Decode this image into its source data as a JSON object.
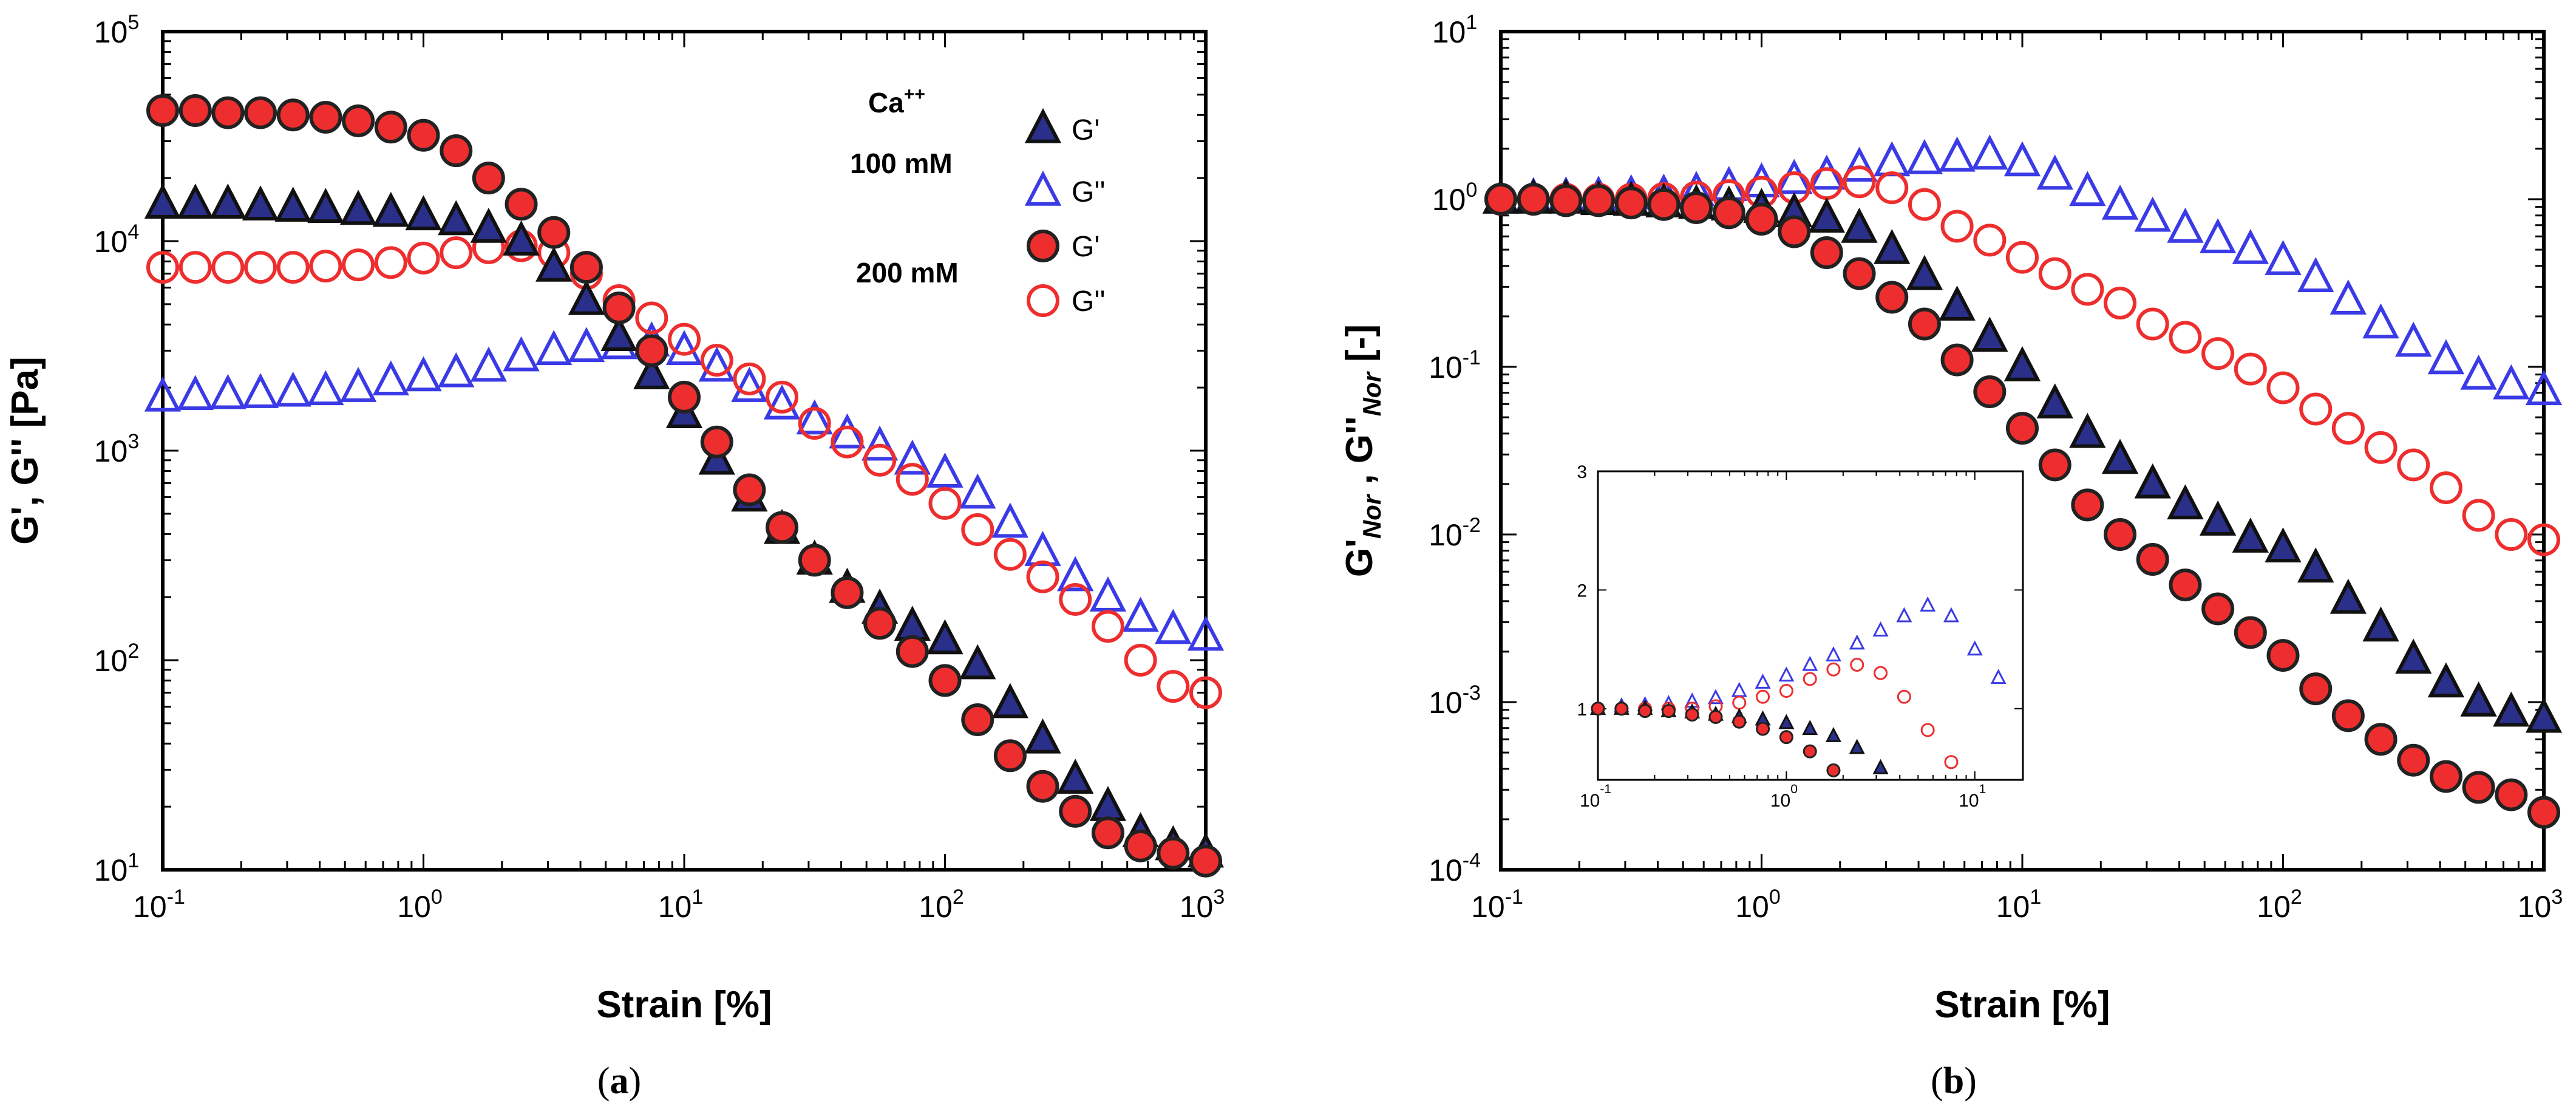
{
  "figure": {
    "captions": [
      "(a)",
      "(b)"
    ],
    "caption_letters": [
      "a",
      "b"
    ]
  },
  "chart_data": [
    {
      "id": "a",
      "type": "scatter",
      "xscale": "log",
      "yscale": "log",
      "xlim": [
        0.1,
        1000
      ],
      "ylim": [
        10,
        100000
      ],
      "xlabel": "Strain [%]",
      "ylabel": "G', G'' [Pa]",
      "xticks": [
        {
          "base": "10",
          "exp": "-1"
        },
        {
          "base": "10",
          "exp": "0"
        },
        {
          "base": "10",
          "exp": "1"
        },
        {
          "base": "10",
          "exp": "2"
        },
        {
          "base": "10",
          "exp": "3"
        }
      ],
      "yticks": [
        {
          "base": "10",
          "exp": "1"
        },
        {
          "base": "10",
          "exp": "2"
        },
        {
          "base": "10",
          "exp": "3"
        },
        {
          "base": "10",
          "exp": "4"
        },
        {
          "base": "10",
          "exp": "5"
        }
      ],
      "legend": {
        "position": "top-right",
        "ion_label": "Ca",
        "ion_charge": "++",
        "groups": [
          "100 mM",
          "200 mM"
        ],
        "entries": [
          {
            "series": "Gp_100",
            "label": "G'"
          },
          {
            "series": "Gpp_100",
            "label": "G''"
          },
          {
            "series": "Gp_200",
            "label": "G'"
          },
          {
            "series": "Gpp_200",
            "label": "G''"
          }
        ]
      },
      "x": [
        0.1,
        0.1334,
        0.1778,
        0.2371,
        0.3162,
        0.4217,
        0.5623,
        0.7499,
        1.0,
        1.334,
        1.778,
        2.371,
        3.162,
        4.217,
        5.623,
        7.499,
        10.0,
        13.34,
        17.78,
        23.71,
        31.62,
        42.17,
        56.23,
        74.99,
        100.0,
        133.4,
        177.8,
        237.1,
        316.2,
        421.7,
        562.3,
        749.9,
        1000.0
      ],
      "series": [
        {
          "key": "Gp_100",
          "name": "G' 100 mM",
          "marker": "triangle",
          "fill": "#2a2f8a",
          "stroke": "#111111",
          "values": [
            15000,
            15000,
            15000,
            14700,
            14500,
            14300,
            14000,
            13700,
            13200,
            12500,
            11500,
            10000,
            7500,
            5200,
            3500,
            2300,
            1500,
            900,
            600,
            420,
            300,
            220,
            175,
            145,
            125,
            95,
            62,
            42,
            27,
            20,
            15,
            13,
            12
          ]
        },
        {
          "key": "Gpp_100",
          "name": "G'' 100 mM",
          "marker": "triangle-open",
          "fill": "none",
          "stroke": "#3a3ae6",
          "values": [
            1800,
            1830,
            1850,
            1870,
            1900,
            1930,
            2000,
            2150,
            2250,
            2350,
            2500,
            2800,
            3000,
            3100,
            3200,
            3300,
            3000,
            2500,
            2000,
            1650,
            1400,
            1200,
            1050,
            900,
            780,
            620,
            450,
            330,
            250,
            200,
            160,
            140,
            130
          ]
        },
        {
          "key": "Gp_200",
          "name": "G' 200 mM",
          "marker": "circle",
          "fill": "#ee2e2e",
          "stroke": "#222222",
          "values": [
            42000,
            42000,
            41000,
            41000,
            40000,
            39000,
            37500,
            35000,
            32000,
            27000,
            20000,
            15000,
            11000,
            7500,
            4800,
            3000,
            1800,
            1100,
            650,
            430,
            300,
            210,
            150,
            110,
            80,
            52,
            35,
            25,
            19,
            15,
            13,
            12,
            11
          ]
        },
        {
          "key": "Gpp_200",
          "name": "G'' 200 mM",
          "marker": "circle-open",
          "fill": "none",
          "stroke": "#ee2e2e",
          "values": [
            7500,
            7500,
            7500,
            7500,
            7500,
            7600,
            7700,
            7900,
            8300,
            8800,
            9300,
            9500,
            8800,
            7000,
            5200,
            4300,
            3400,
            2700,
            2200,
            1800,
            1350,
            1100,
            900,
            730,
            560,
            420,
            320,
            250,
            195,
            145,
            100,
            75,
            70
          ]
        }
      ]
    },
    {
      "id": "b",
      "type": "scatter",
      "xscale": "log",
      "yscale": "log",
      "xlim": [
        0.1,
        1000
      ],
      "ylim": [
        0.0001,
        10
      ],
      "xlabel": "Strain [%]",
      "ylabel_parts": [
        "G'",
        "Nor",
        " , G''",
        "Nor",
        " [-]"
      ],
      "xticks": [
        {
          "base": "10",
          "exp": "-1"
        },
        {
          "base": "10",
          "exp": "0"
        },
        {
          "base": "10",
          "exp": "1"
        },
        {
          "base": "10",
          "exp": "2"
        },
        {
          "base": "10",
          "exp": "3"
        }
      ],
      "yticks": [
        {
          "base": "10",
          "exp": "-4"
        },
        {
          "base": "10",
          "exp": "-3"
        },
        {
          "base": "10",
          "exp": "-2"
        },
        {
          "base": "10",
          "exp": "-1"
        },
        {
          "base": "10",
          "exp": "0"
        },
        {
          "base": "10",
          "exp": "1"
        }
      ],
      "x": [
        0.1,
        0.1334,
        0.1778,
        0.2371,
        0.3162,
        0.4217,
        0.5623,
        0.7499,
        1.0,
        1.334,
        1.778,
        2.371,
        3.162,
        4.217,
        5.623,
        7.499,
        10.0,
        13.34,
        17.78,
        23.71,
        31.62,
        42.17,
        56.23,
        74.99,
        100.0,
        133.4,
        177.8,
        237.1,
        316.2,
        421.7,
        562.3,
        749.9,
        1000.0
      ],
      "series": [
        {
          "key": "Gp_100",
          "name": "G'Nor 100 mM",
          "marker": "triangle",
          "fill": "#2a2f8a",
          "stroke": "#111111",
          "values": [
            1.0,
            1.0,
            1.0,
            0.98,
            0.97,
            0.95,
            0.93,
            0.91,
            0.88,
            0.83,
            0.77,
            0.67,
            0.5,
            0.35,
            0.23,
            0.15,
            0.1,
            0.06,
            0.04,
            0.028,
            0.02,
            0.015,
            0.012,
            0.0095,
            0.0083,
            0.0063,
            0.0041,
            0.0028,
            0.0018,
            0.0013,
            0.001,
            0.00087,
            0.0008
          ]
        },
        {
          "key": "Gpp_100",
          "name": "G''Nor 100 mM",
          "marker": "triangle-open",
          "fill": "none",
          "stroke": "#3a3ae6",
          "values": [
            1.0,
            1.02,
            1.03,
            1.04,
            1.06,
            1.07,
            1.11,
            1.19,
            1.25,
            1.31,
            1.39,
            1.55,
            1.67,
            1.72,
            1.78,
            1.83,
            1.67,
            1.39,
            1.11,
            0.92,
            0.78,
            0.67,
            0.58,
            0.5,
            0.43,
            0.34,
            0.25,
            0.18,
            0.14,
            0.11,
            0.089,
            0.078,
            0.072
          ]
        },
        {
          "key": "Gp_200",
          "name": "G'Nor 200 mM",
          "marker": "circle",
          "fill": "#ee2e2e",
          "stroke": "#222222",
          "values": [
            1.0,
            1.0,
            0.98,
            0.98,
            0.95,
            0.93,
            0.89,
            0.83,
            0.76,
            0.64,
            0.48,
            0.36,
            0.26,
            0.18,
            0.11,
            0.071,
            0.043,
            0.026,
            0.015,
            0.01,
            0.0071,
            0.005,
            0.0036,
            0.0026,
            0.0019,
            0.0012,
            0.00083,
            0.0006,
            0.00045,
            0.00036,
            0.00031,
            0.00028,
            0.00022
          ]
        },
        {
          "key": "Gpp_200",
          "name": "G''Nor 200 mM",
          "marker": "circle-open",
          "fill": "none",
          "stroke": "#ee2e2e",
          "values": [
            1.0,
            1.0,
            1.0,
            1.0,
            1.0,
            1.01,
            1.03,
            1.05,
            1.1,
            1.17,
            1.24,
            1.27,
            1.17,
            0.93,
            0.69,
            0.57,
            0.45,
            0.36,
            0.29,
            0.24,
            0.18,
            0.15,
            0.12,
            0.097,
            0.075,
            0.056,
            0.043,
            0.033,
            0.026,
            0.019,
            0.013,
            0.01,
            0.0093
          ]
        }
      ],
      "inset": {
        "type": "scatter",
        "xscale": "log",
        "yscale": "linear",
        "xlim": [
          0.1,
          18
        ],
        "ylim": [
          0.4,
          3
        ],
        "xticks": [
          {
            "base": "10",
            "exp": "-1"
          },
          {
            "base": "10",
            "exp": "0"
          },
          {
            "base": "10",
            "exp": "1"
          }
        ],
        "yticks": [
          "1",
          "2",
          "3"
        ],
        "x": [
          0.1,
          0.1334,
          0.1778,
          0.2371,
          0.3162,
          0.4217,
          0.5623,
          0.7499,
          1.0,
          1.334,
          1.778,
          2.371,
          3.162,
          4.217,
          5.623,
          7.499,
          10.0,
          13.34
        ],
        "series": [
          {
            "key": "Gp_100",
            "values": [
              1.0,
              1.0,
              1.0,
              0.98,
              0.97,
              0.95,
              0.93,
              0.91,
              0.88,
              0.83,
              0.77,
              0.67,
              0.5
            ]
          },
          {
            "key": "Gpp_100",
            "values": [
              1.0,
              1.02,
              1.03,
              1.04,
              1.06,
              1.09,
              1.15,
              1.22,
              1.28,
              1.37,
              1.45,
              1.55,
              1.66,
              1.78,
              1.87,
              1.78,
              1.5,
              1.26
            ]
          },
          {
            "key": "Gp_200",
            "values": [
              1.0,
              1.0,
              0.98,
              0.98,
              0.95,
              0.93,
              0.89,
              0.83,
              0.76,
              0.64,
              0.48
            ]
          },
          {
            "key": "Gpp_200",
            "values": [
              1.0,
              1.0,
              1.0,
              1.0,
              1.0,
              1.02,
              1.05,
              1.1,
              1.15,
              1.25,
              1.33,
              1.37,
              1.3,
              1.1,
              0.82,
              0.55
            ]
          }
        ]
      }
    }
  ]
}
